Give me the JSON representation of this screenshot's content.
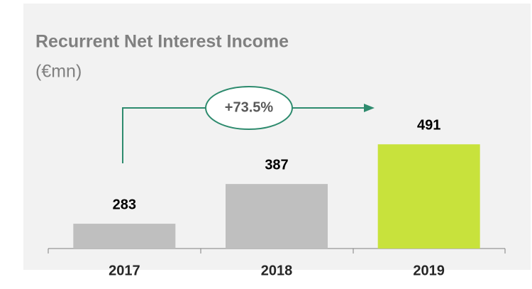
{
  "chart_data": {
    "type": "bar",
    "title": "Recurrent Net Interest Income",
    "subtitle": "(€mn)",
    "categories": [
      "2017",
      "2018",
      "2019"
    ],
    "values": [
      283,
      387,
      491
    ],
    "colors": [
      "#bfbfbf",
      "#bfbfbf",
      "#c8e23c"
    ],
    "ylim": [
      218,
      590
    ],
    "annotation": "+73.5%"
  }
}
